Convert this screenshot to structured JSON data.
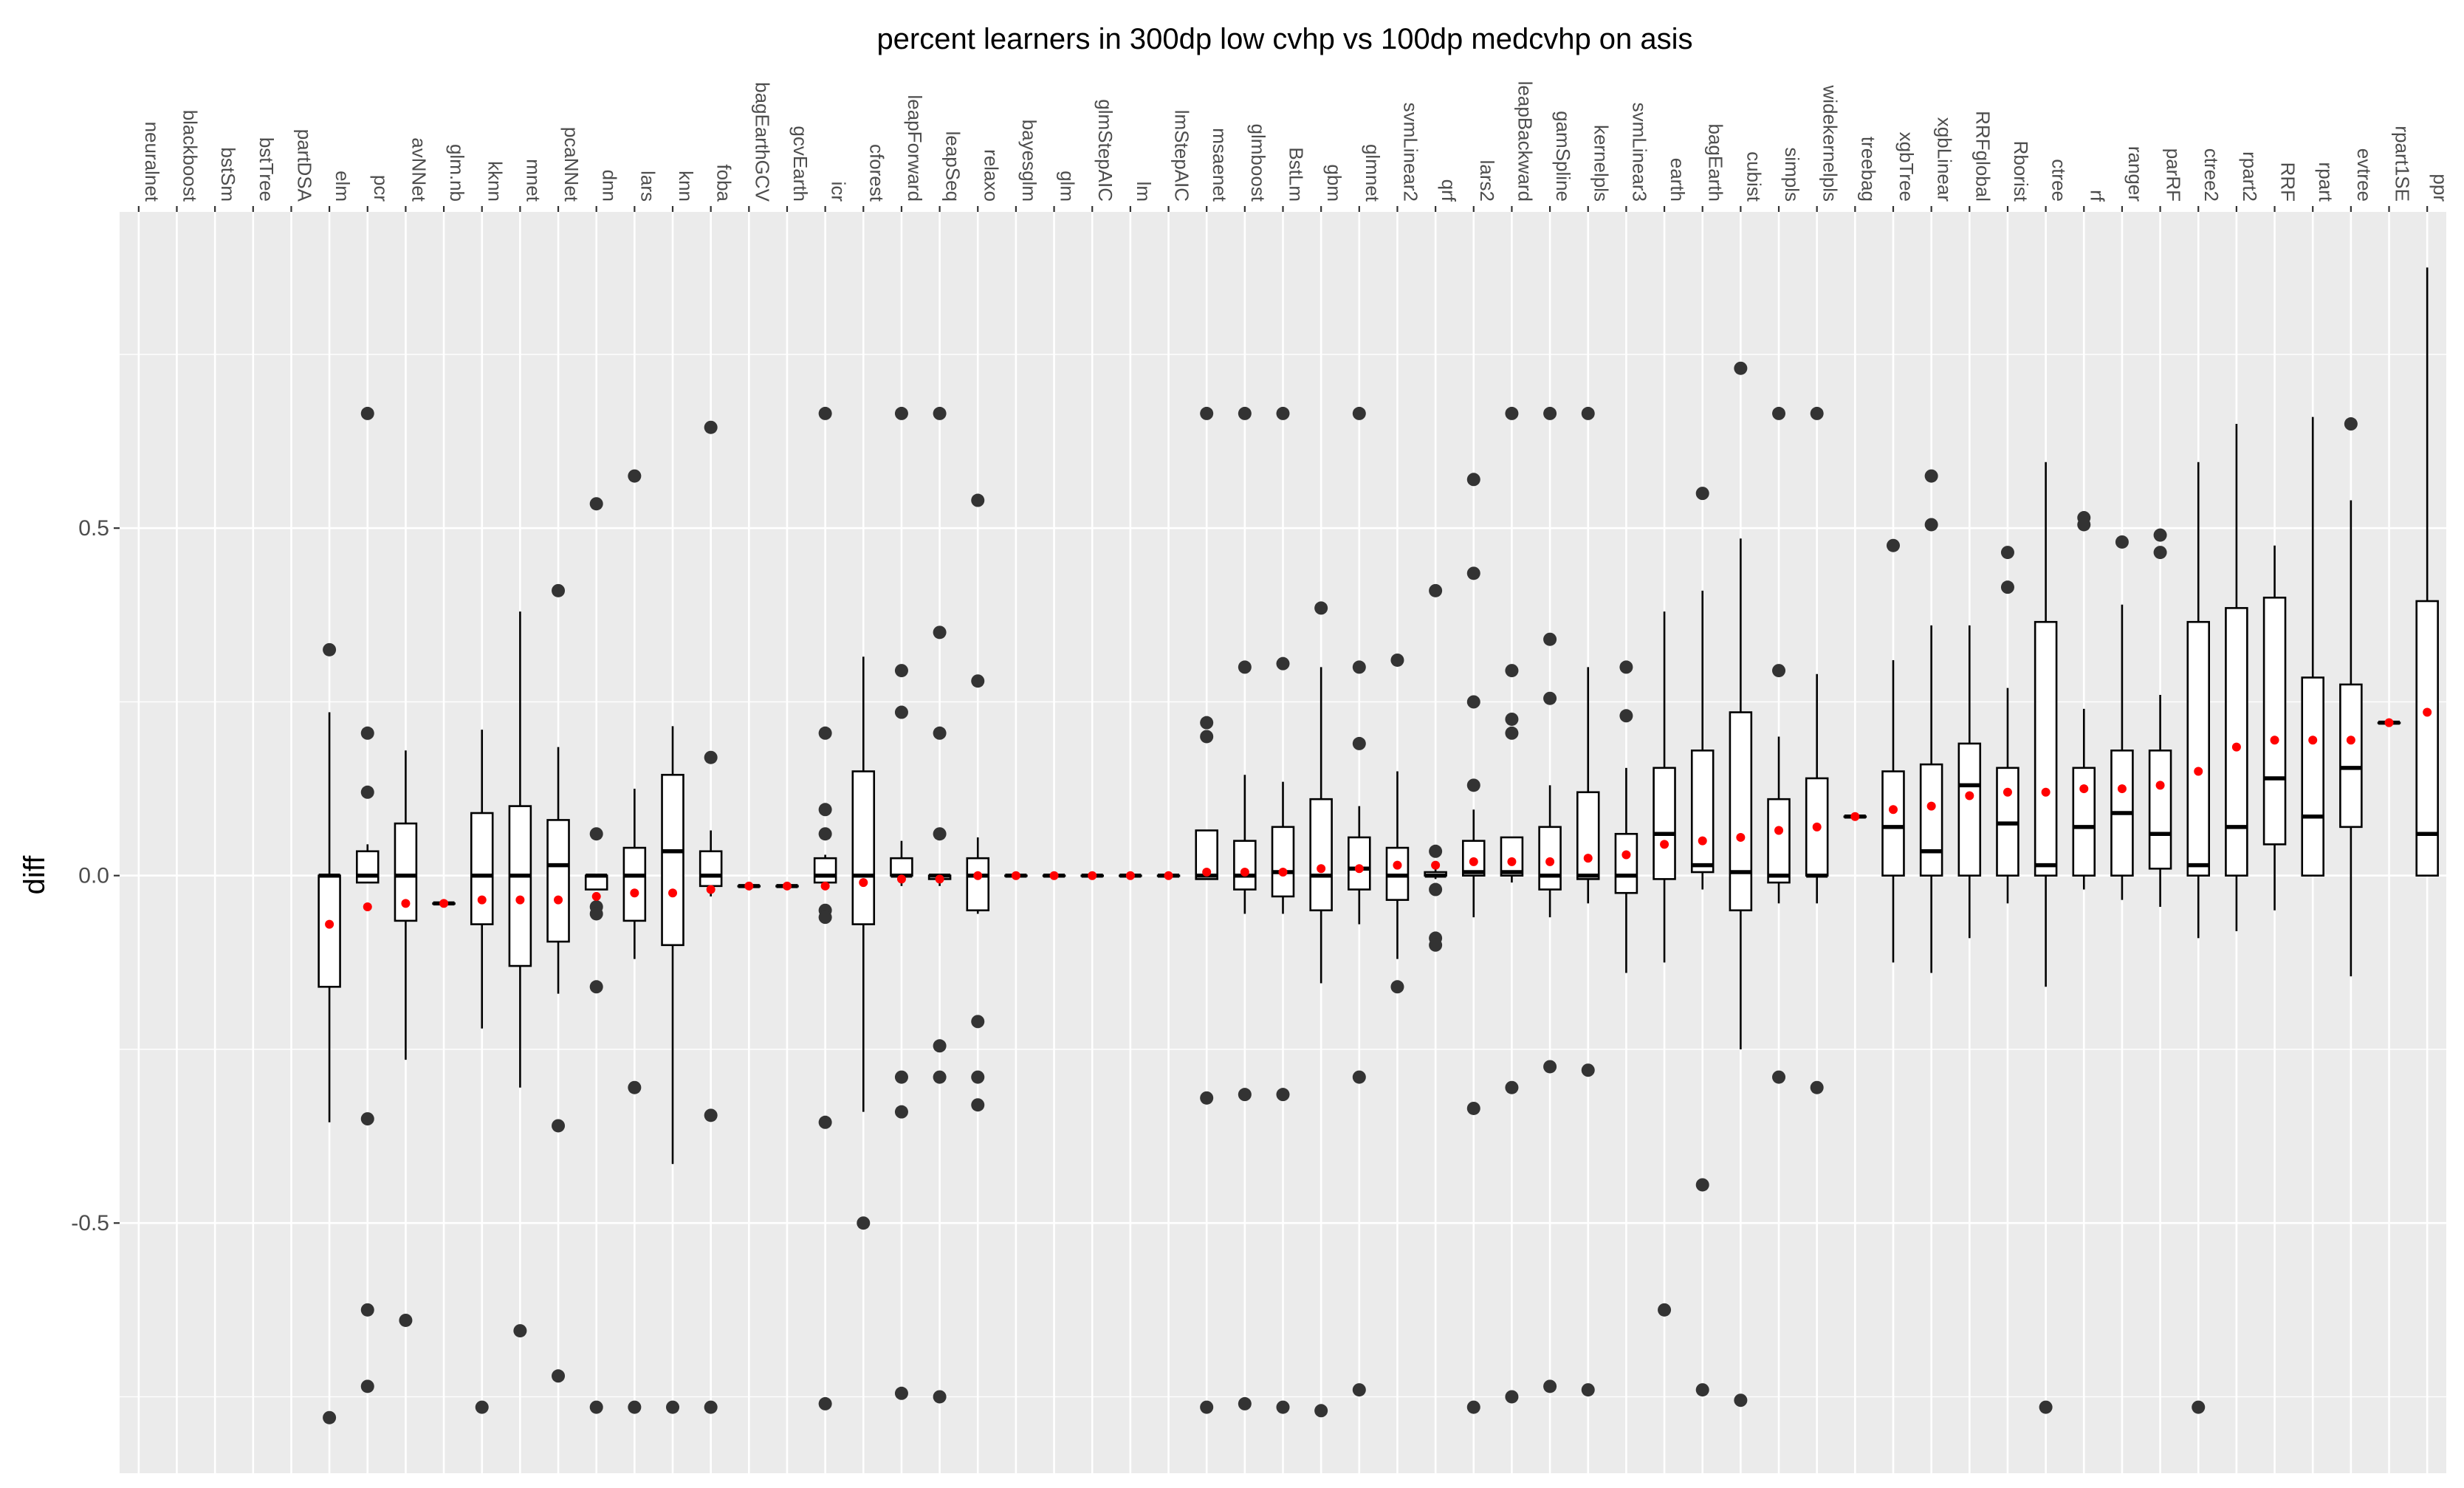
{
  "chart_data": {
    "type": "box",
    "title": "percent learners in 300dp low cvhp vs 100dp medcvhp on asis",
    "xlabel": "",
    "ylabel": "diff",
    "ylim": [
      -0.86,
      0.955
    ],
    "yticks": [
      -0.5,
      0.0,
      0.5
    ],
    "ytick_labels": [
      "-0.5",
      "0.0",
      "0.5"
    ],
    "x_axis_position": "top",
    "x_label_rotation": 90,
    "grid": true,
    "panel_background": "#ebebeb",
    "box_color": "#000000",
    "outlier_color": "#333333",
    "mean_color": "#ff0000",
    "categories": [
      "neuralnet",
      "blackboost",
      "bstSm",
      "bstTree",
      "partDSA",
      "elm",
      "pcr",
      "avNNet",
      "glm.nb",
      "kknn",
      "mnet",
      "pcaNNet",
      "dnn",
      "lars",
      "knn",
      "foba",
      "bagEarthGCV",
      "gcvEarth",
      "icr",
      "cforest",
      "leapForward",
      "leapSeq",
      "relaxo",
      "bayesglm",
      "glm",
      "glmStepAIC",
      "lm",
      "lmStepAIC",
      "msaenet",
      "glmboost",
      "BstLm",
      "gbm",
      "glmnet",
      "svmLinear2",
      "qrf",
      "lars2",
      "leapBackward",
      "gamSpline",
      "kernelpls",
      "svmLinear3",
      "earth",
      "bagEarth",
      "cubist",
      "simpls",
      "widekernelpls",
      "treebag",
      "xgbTree",
      "xgbLinear",
      "RRFglobal",
      "Rborist",
      "ctree",
      "rf",
      "ranger",
      "parRF",
      "ctree2",
      "rpart2",
      "RRF",
      "rpart",
      "evtree",
      "rpart1SE",
      "ppr"
    ],
    "boxes": [
      null,
      null,
      null,
      null,
      null,
      {
        "lw": -0.355,
        "q1": -0.16,
        "med": 0.0,
        "q3": 0.0,
        "uw": 0.235,
        "mean": -0.07,
        "out": [
          0.325,
          -0.78
        ]
      },
      {
        "lw": -0.01,
        "q1": -0.01,
        "med": 0.0,
        "q3": 0.035,
        "uw": 0.045,
        "mean": -0.045,
        "out": [
          0.665,
          0.205,
          0.12,
          -0.35,
          -0.625,
          -0.735
        ]
      },
      {
        "lw": -0.265,
        "q1": -0.065,
        "med": 0.0,
        "q3": 0.075,
        "uw": 0.18,
        "mean": -0.04,
        "out": [
          -0.64
        ]
      },
      {
        "lw": -0.04,
        "q1": -0.04,
        "med": -0.04,
        "q3": -0.04,
        "uw": -0.04,
        "mean": -0.04,
        "out": []
      },
      {
        "lw": -0.22,
        "q1": -0.07,
        "med": 0.0,
        "q3": 0.09,
        "uw": 0.21,
        "mean": -0.035,
        "out": [
          -0.765
        ]
      },
      {
        "lw": -0.305,
        "q1": -0.13,
        "med": 0.0,
        "q3": 0.1,
        "uw": 0.38,
        "mean": -0.035,
        "out": [
          -0.655
        ]
      },
      {
        "lw": -0.17,
        "q1": -0.095,
        "med": 0.015,
        "q3": 0.08,
        "uw": 0.185,
        "mean": -0.035,
        "out": [
          0.41,
          -0.36,
          -0.72
        ]
      },
      {
        "lw": -0.02,
        "q1": -0.02,
        "med": 0.0,
        "q3": 0.0,
        "uw": 0.0,
        "mean": -0.03,
        "out": [
          0.535,
          0.06,
          -0.045,
          -0.055,
          -0.16,
          -0.765
        ]
      },
      {
        "lw": -0.12,
        "q1": -0.065,
        "med": 0.0,
        "q3": 0.04,
        "uw": 0.125,
        "mean": -0.025,
        "out": [
          0.575,
          -0.305,
          -0.765
        ]
      },
      {
        "lw": -0.415,
        "q1": -0.1,
        "med": 0.035,
        "q3": 0.145,
        "uw": 0.215,
        "mean": -0.025,
        "out": [
          -0.765
        ]
      },
      {
        "lw": -0.03,
        "q1": -0.015,
        "med": 0.0,
        "q3": 0.035,
        "uw": 0.065,
        "mean": -0.02,
        "out": [
          0.645,
          0.17,
          -0.345,
          -0.765
        ]
      },
      {
        "lw": -0.015,
        "q1": -0.015,
        "med": -0.015,
        "q3": -0.015,
        "uw": -0.015,
        "mean": -0.015,
        "out": []
      },
      {
        "lw": -0.015,
        "q1": -0.015,
        "med": -0.015,
        "q3": -0.015,
        "uw": -0.015,
        "mean": -0.015,
        "out": []
      },
      {
        "lw": -0.01,
        "q1": -0.01,
        "med": 0.0,
        "q3": 0.025,
        "uw": 0.03,
        "mean": -0.015,
        "out": [
          0.665,
          0.205,
          0.095,
          0.06,
          -0.05,
          -0.06,
          -0.355,
          -0.76
        ]
      },
      {
        "lw": -0.34,
        "q1": -0.07,
        "med": 0.0,
        "q3": 0.15,
        "uw": 0.315,
        "mean": -0.01,
        "out": [
          -0.5
        ]
      },
      {
        "lw": -0.015,
        "q1": 0.0,
        "med": 0.0,
        "q3": 0.025,
        "uw": 0.05,
        "mean": -0.005,
        "out": [
          0.665,
          0.295,
          0.235,
          -0.29,
          -0.34,
          -0.745
        ]
      },
      {
        "lw": -0.015,
        "q1": -0.005,
        "med": 0.0,
        "q3": 0.0,
        "uw": 0.0,
        "mean": -0.005,
        "out": [
          0.665,
          0.35,
          0.205,
          0.06,
          -0.245,
          -0.29,
          -0.75
        ]
      },
      {
        "lw": -0.055,
        "q1": -0.05,
        "med": 0.0,
        "q3": 0.025,
        "uw": 0.055,
        "mean": 0.0,
        "out": [
          0.54,
          0.28,
          -0.21,
          -0.29,
          -0.33
        ]
      },
      {
        "lw": 0.0,
        "q1": 0.0,
        "med": 0.0,
        "q3": 0.0,
        "uw": 0.0,
        "mean": 0.0,
        "out": []
      },
      {
        "lw": 0.0,
        "q1": 0.0,
        "med": 0.0,
        "q3": 0.0,
        "uw": 0.0,
        "mean": 0.0,
        "out": []
      },
      {
        "lw": 0.0,
        "q1": 0.0,
        "med": 0.0,
        "q3": 0.0,
        "uw": 0.0,
        "mean": 0.0,
        "out": []
      },
      {
        "lw": 0.0,
        "q1": 0.0,
        "med": 0.0,
        "q3": 0.0,
        "uw": 0.0,
        "mean": 0.0,
        "out": []
      },
      {
        "lw": 0.0,
        "q1": 0.0,
        "med": 0.0,
        "q3": 0.0,
        "uw": 0.0,
        "mean": 0.0,
        "out": []
      },
      {
        "lw": -0.005,
        "q1": -0.005,
        "med": 0.0,
        "q3": 0.065,
        "uw": 0.065,
        "mean": 0.005,
        "out": [
          0.665,
          0.22,
          0.2,
          -0.32,
          -0.765
        ]
      },
      {
        "lw": -0.055,
        "q1": -0.02,
        "med": 0.0,
        "q3": 0.05,
        "uw": 0.145,
        "mean": 0.005,
        "out": [
          0.665,
          0.3,
          -0.315,
          -0.76
        ]
      },
      {
        "lw": -0.055,
        "q1": -0.03,
        "med": 0.005,
        "q3": 0.07,
        "uw": 0.135,
        "mean": 0.005,
        "out": [
          0.665,
          0.305,
          -0.315,
          -0.765
        ]
      },
      {
        "lw": -0.155,
        "q1": -0.05,
        "med": 0.0,
        "q3": 0.11,
        "uw": 0.3,
        "mean": 0.01,
        "out": [
          0.385,
          -0.77
        ]
      },
      {
        "lw": -0.07,
        "q1": -0.02,
        "med": 0.01,
        "q3": 0.055,
        "uw": 0.1,
        "mean": 0.01,
        "out": [
          0.665,
          0.3,
          0.19,
          -0.29,
          -0.74
        ]
      },
      {
        "lw": -0.12,
        "q1": -0.035,
        "med": 0.0,
        "q3": 0.04,
        "uw": 0.15,
        "mean": 0.015,
        "out": [
          0.31,
          -0.16
        ]
      },
      {
        "lw": -0.005,
        "q1": 0.0,
        "med": 0.0,
        "q3": 0.005,
        "uw": 0.015,
        "mean": 0.015,
        "out": [
          0.41,
          0.035,
          -0.02,
          -0.09,
          -0.1
        ]
      },
      {
        "lw": -0.06,
        "q1": 0.0,
        "med": 0.005,
        "q3": 0.05,
        "uw": 0.095,
        "mean": 0.02,
        "out": [
          0.57,
          0.435,
          0.25,
          0.13,
          -0.335,
          -0.765
        ]
      },
      {
        "lw": -0.01,
        "q1": 0.0,
        "med": 0.005,
        "q3": 0.055,
        "uw": 0.055,
        "mean": 0.02,
        "out": [
          0.665,
          0.295,
          0.225,
          0.205,
          -0.305,
          -0.75
        ]
      },
      {
        "lw": -0.06,
        "q1": -0.02,
        "med": 0.0,
        "q3": 0.07,
        "uw": 0.13,
        "mean": 0.02,
        "out": [
          0.665,
          0.34,
          0.255,
          -0.275,
          -0.735
        ]
      },
      {
        "lw": -0.04,
        "q1": -0.005,
        "med": 0.0,
        "q3": 0.12,
        "uw": 0.3,
        "mean": 0.025,
        "out": [
          0.665,
          -0.28,
          -0.74
        ]
      },
      {
        "lw": -0.14,
        "q1": -0.025,
        "med": 0.0,
        "q3": 0.06,
        "uw": 0.155,
        "mean": 0.03,
        "out": [
          0.3,
          0.23
        ]
      },
      {
        "lw": -0.125,
        "q1": -0.005,
        "med": 0.06,
        "q3": 0.155,
        "uw": 0.38,
        "mean": 0.045,
        "out": [
          -0.625
        ]
      },
      {
        "lw": -0.02,
        "q1": 0.005,
        "med": 0.015,
        "q3": 0.18,
        "uw": 0.41,
        "mean": 0.05,
        "out": [
          0.55,
          -0.445,
          -0.74
        ]
      },
      {
        "lw": -0.25,
        "q1": -0.05,
        "med": 0.005,
        "q3": 0.235,
        "uw": 0.485,
        "mean": 0.055,
        "out": [
          0.73,
          -0.755
        ]
      },
      {
        "lw": -0.04,
        "q1": -0.01,
        "med": 0.0,
        "q3": 0.11,
        "uw": 0.2,
        "mean": 0.065,
        "out": [
          0.665,
          0.295,
          -0.29
        ]
      },
      {
        "lw": -0.04,
        "q1": 0.0,
        "med": 0.0,
        "q3": 0.14,
        "uw": 0.29,
        "mean": 0.07,
        "out": [
          0.665,
          -0.305
        ]
      },
      {
        "lw": 0.085,
        "q1": 0.085,
        "med": 0.085,
        "q3": 0.085,
        "uw": 0.085,
        "mean": 0.085,
        "out": []
      },
      {
        "lw": -0.125,
        "q1": 0.0,
        "med": 0.07,
        "q3": 0.15,
        "uw": 0.31,
        "mean": 0.095,
        "out": [
          0.475
        ]
      },
      {
        "lw": -0.14,
        "q1": 0.0,
        "med": 0.035,
        "q3": 0.16,
        "uw": 0.36,
        "mean": 0.1,
        "out": [
          0.575,
          0.505
        ]
      },
      {
        "lw": -0.09,
        "q1": 0.0,
        "med": 0.13,
        "q3": 0.19,
        "uw": 0.36,
        "mean": 0.115,
        "out": []
      },
      {
        "lw": -0.04,
        "q1": 0.0,
        "med": 0.075,
        "q3": 0.155,
        "uw": 0.27,
        "mean": 0.12,
        "out": [
          0.465,
          0.415
        ]
      },
      {
        "lw": -0.16,
        "q1": 0.0,
        "med": 0.015,
        "q3": 0.365,
        "uw": 0.595,
        "mean": 0.12,
        "out": [
          -0.765
        ]
      },
      {
        "lw": -0.02,
        "q1": 0.0,
        "med": 0.07,
        "q3": 0.155,
        "uw": 0.24,
        "mean": 0.125,
        "out": [
          0.515,
          0.505
        ]
      },
      {
        "lw": -0.035,
        "q1": 0.0,
        "med": 0.09,
        "q3": 0.18,
        "uw": 0.39,
        "mean": 0.125,
        "out": [
          0.48
        ]
      },
      {
        "lw": -0.045,
        "q1": 0.01,
        "med": 0.06,
        "q3": 0.18,
        "uw": 0.26,
        "mean": 0.13,
        "out": [
          0.49,
          0.465
        ]
      },
      {
        "lw": -0.09,
        "q1": 0.0,
        "med": 0.015,
        "q3": 0.365,
        "uw": 0.595,
        "mean": 0.15,
        "out": [
          -0.765
        ]
      },
      {
        "lw": -0.08,
        "q1": 0.0,
        "med": 0.07,
        "q3": 0.385,
        "uw": 0.65,
        "mean": 0.185,
        "out": []
      },
      {
        "lw": -0.05,
        "q1": 0.045,
        "med": 0.14,
        "q3": 0.4,
        "uw": 0.475,
        "mean": 0.195,
        "out": []
      },
      {
        "lw": 0.0,
        "q1": 0.0,
        "med": 0.085,
        "q3": 0.285,
        "uw": 0.66,
        "mean": 0.195,
        "out": []
      },
      {
        "lw": -0.145,
        "q1": 0.07,
        "med": 0.155,
        "q3": 0.275,
        "uw": 0.54,
        "mean": 0.195,
        "out": [
          0.65
        ]
      },
      {
        "lw": 0.22,
        "q1": 0.22,
        "med": 0.22,
        "q3": 0.22,
        "uw": 0.22,
        "mean": 0.22,
        "out": []
      },
      {
        "lw": 0.0,
        "q1": 0.0,
        "med": 0.06,
        "q3": 0.395,
        "uw": 0.875,
        "mean": 0.235,
        "out": []
      }
    ]
  }
}
